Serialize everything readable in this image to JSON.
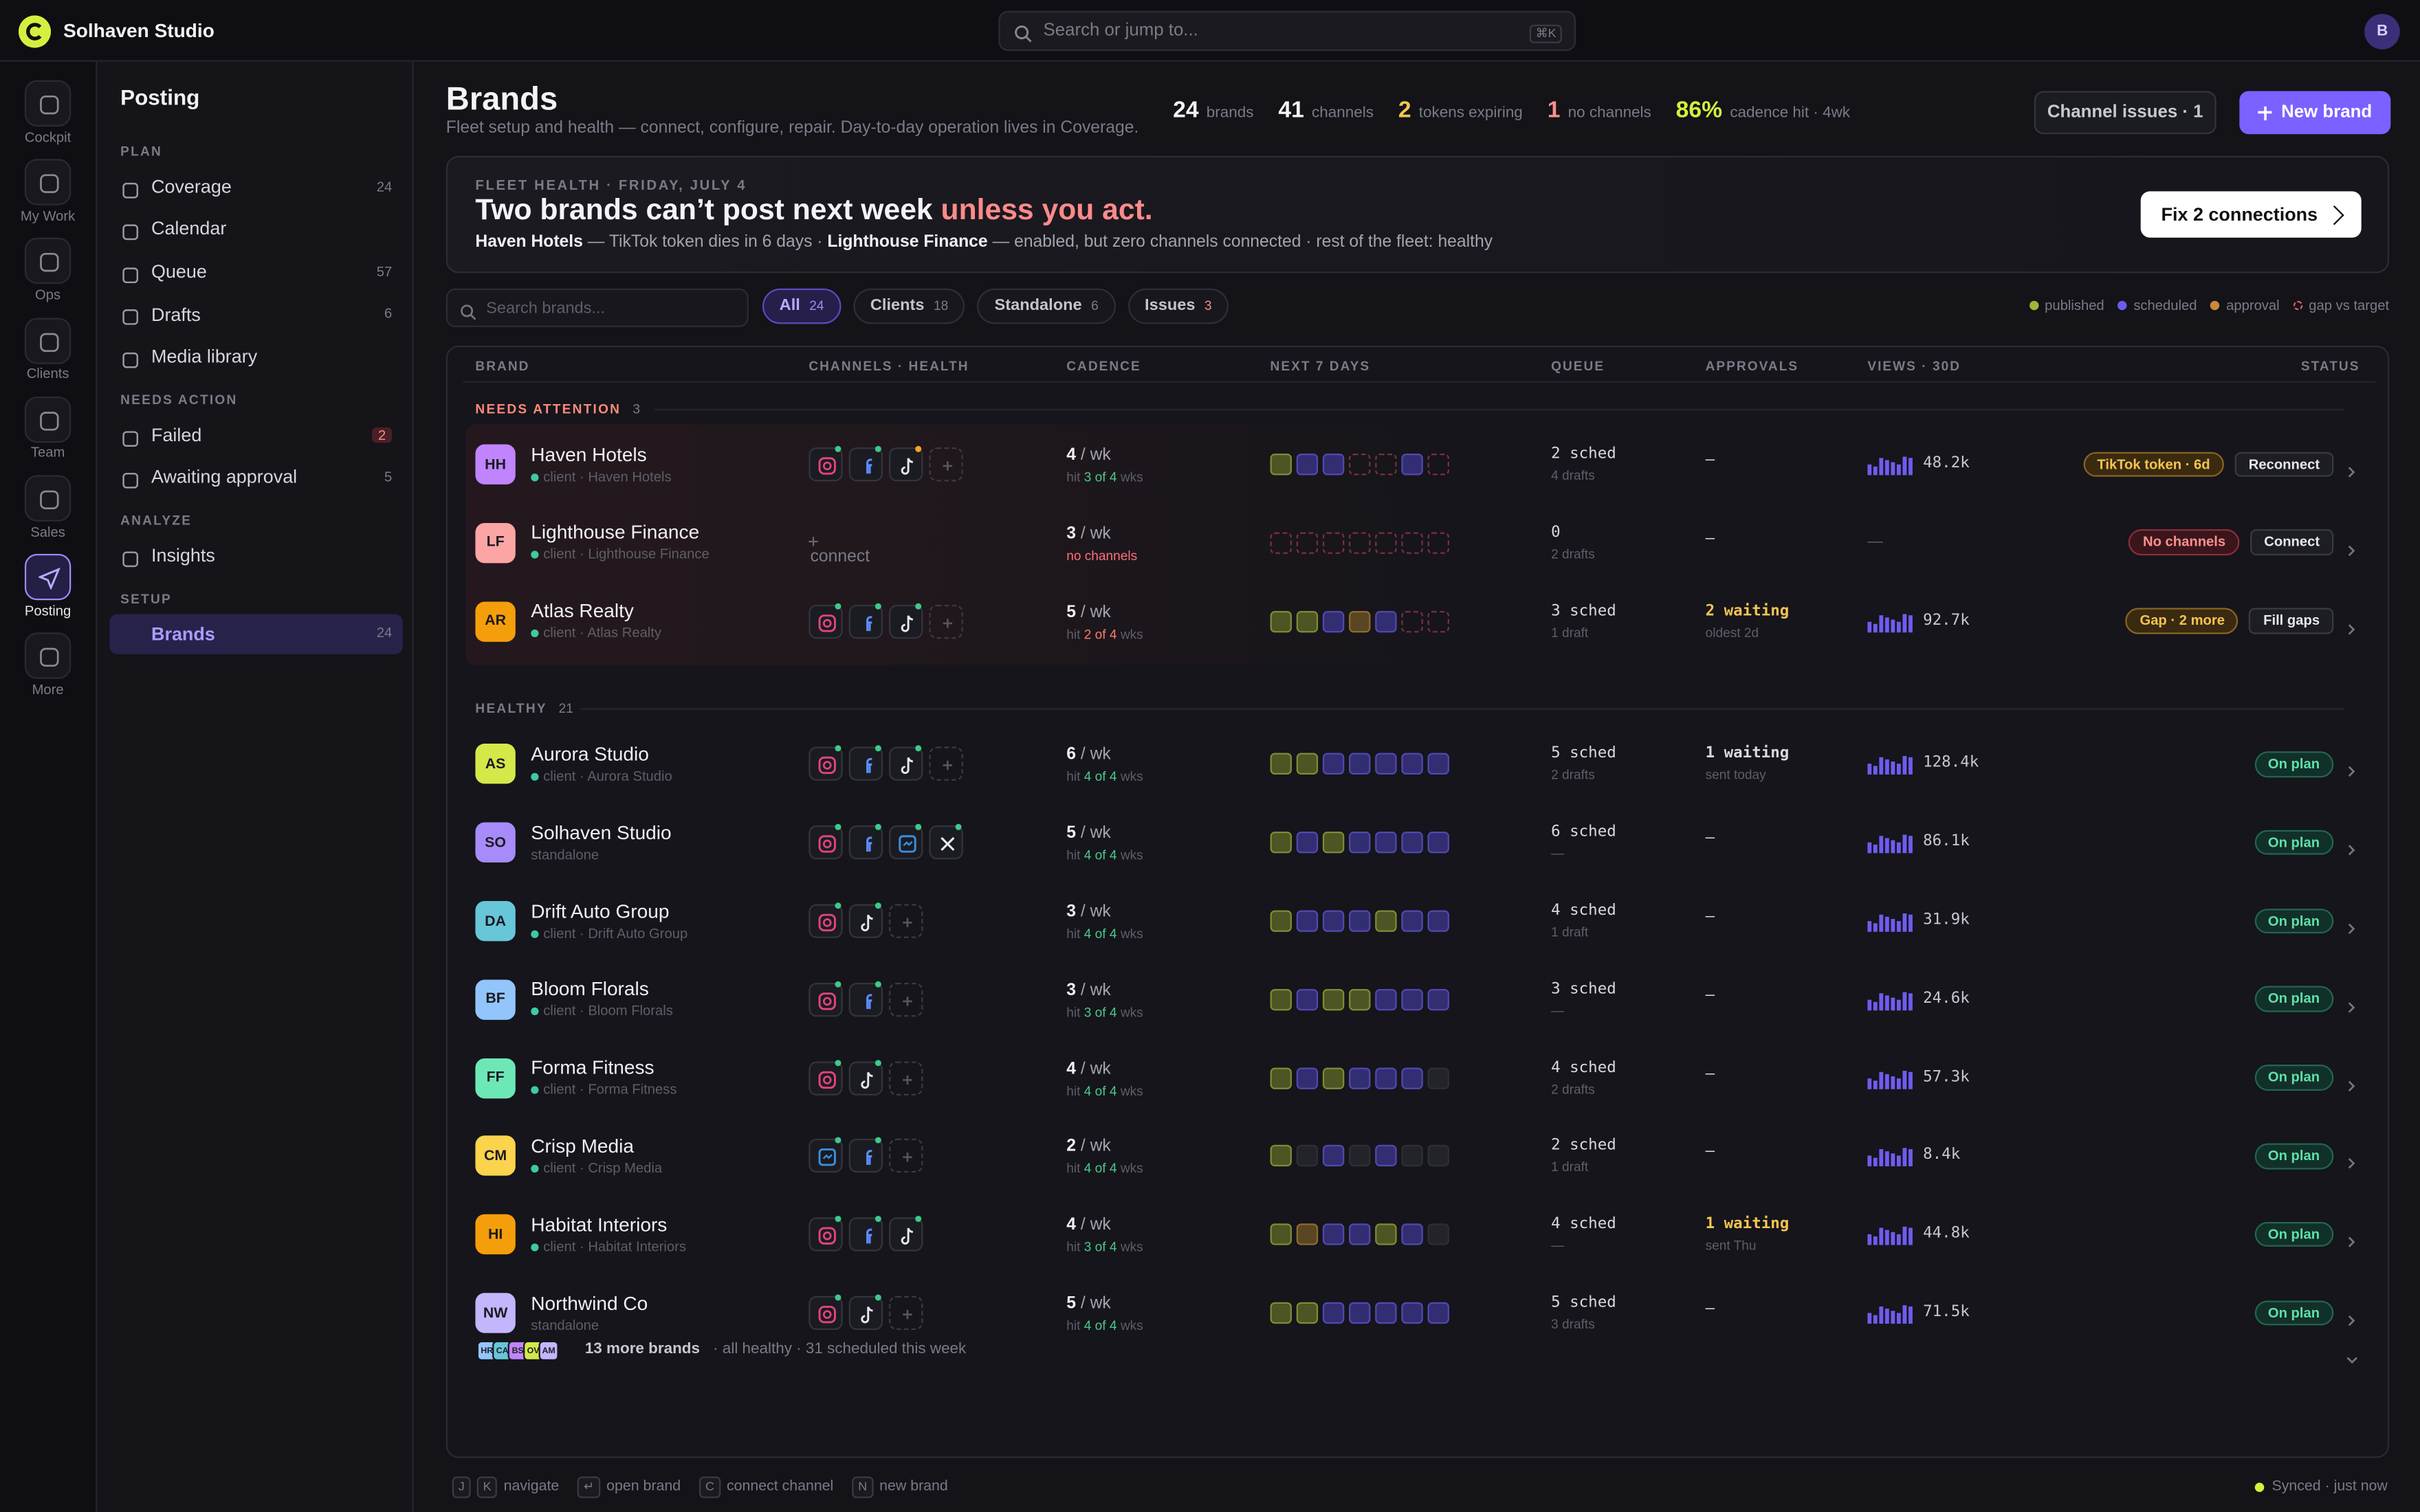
{
  "app": {
    "name": "Solhaven Studio",
    "search": "Search or jump to...",
    "shortcut": "⌘K",
    "avatar": "B"
  },
  "rail": [
    {
      "label": "Cockpit"
    },
    {
      "label": "My Work"
    },
    {
      "label": "Ops"
    },
    {
      "label": "Clients"
    },
    {
      "label": "Team"
    },
    {
      "label": "Sales"
    },
    {
      "label": "Posting",
      "active": true
    },
    {
      "label": "More"
    }
  ],
  "sidebar": {
    "title": "Posting",
    "sections": [
      {
        "heading": "PLAN",
        "items": [
          {
            "label": "Coverage",
            "count": 24
          },
          {
            "label": "Calendar"
          },
          {
            "label": "Queue",
            "count": 57
          },
          {
            "label": "Drafts",
            "count": 6
          },
          {
            "label": "Media library"
          }
        ]
      },
      {
        "heading": "NEEDS ACTION",
        "items": [
          {
            "label": "Failed",
            "count": 2,
            "alert": true
          },
          {
            "label": "Awaiting approval",
            "count": 5
          }
        ]
      },
      {
        "heading": "ANALYZE",
        "items": [
          {
            "label": "Insights"
          }
        ]
      },
      {
        "heading": "SETUP",
        "items": [
          {
            "label": "Brands",
            "count": 24,
            "active": true
          }
        ]
      }
    ]
  },
  "header": {
    "title": "Brands",
    "subtitle": "Fleet setup and health — connect, configure, repair. Day-to-day operation lives in Coverage.",
    "stats": [
      {
        "value": "24",
        "label": "brands",
        "tone": "plain"
      },
      {
        "value": "41",
        "label": "channels",
        "tone": "plain"
      },
      {
        "value": "2",
        "label": "tokens expiring",
        "tone": "warn"
      },
      {
        "value": "1",
        "label": "no channels",
        "tone": "bad"
      },
      {
        "value": "86%",
        "label": "cadence hit · 4wk",
        "tone": "good"
      }
    ],
    "secondary_button": "Channel issues · 1",
    "primary_button": "New brand"
  },
  "banner": {
    "kicker": "FLEET HEALTH · FRIDAY, JULY 4",
    "headline": "Two brands can’t post next week",
    "emphasis": "unless you act.",
    "detail": [
      {
        "strong": "Haven Hotels",
        "text": " — TikTok token dies in 6 days · "
      },
      {
        "strong": "Lighthouse Finance",
        "text": " — enabled, but zero channels connected · rest of the fleet: healthy"
      }
    ],
    "button": "Fix 2 connections"
  },
  "filters": {
    "search": "Search brands...",
    "chips": [
      {
        "label": "All",
        "count": 24,
        "active": true
      },
      {
        "label": "Clients",
        "count": 18
      },
      {
        "label": "Standalone",
        "count": 6
      },
      {
        "label": "Issues",
        "count": 3,
        "alert": true
      }
    ],
    "legend": [
      {
        "label": "published",
        "state": "p"
      },
      {
        "label": "scheduled",
        "state": "s"
      },
      {
        "label": "approval",
        "state": "a"
      },
      {
        "label": "gap vs target",
        "state": "g"
      }
    ]
  },
  "table": {
    "columns": [
      "BRAND",
      "CHANNELS · HEALTH",
      "CADENCE",
      "NEXT 7 DAYS",
      "QUEUE",
      "APPROVALS",
      "VIEWS · 30D",
      "STATUS"
    ],
    "hit_prefix": "hit",
    "hit_suffix": "wks",
    "per_week": "/ wk",
    "groups": [
      {
        "label": "NEEDS ATTENTION",
        "count": 3,
        "attention": true,
        "rows": [
          {
            "initials": "HH",
            "name": "Haven Hotels",
            "sub": "client · Haven Hotels",
            "client": true,
            "color": "#c084fc",
            "channels": [
              "ig",
              "fb",
              "tt!",
              "add"
            ],
            "cadence": "4",
            "hit": "3 of 4",
            "hit_tone": "ok",
            "days": [
              "p",
              "s",
              "s",
              "g",
              "g",
              "s",
              "g"
            ],
            "queue": "2 sched",
            "queue_sub": "4 drafts",
            "approvals": "—",
            "views": "48.2k",
            "status": "TikTok token · 6d",
            "tone": "warn",
            "action": "Reconnect"
          },
          {
            "initials": "LF",
            "name": "Lighthouse Finance",
            "sub": "client · Lighthouse Finance",
            "client": true,
            "color": "#fca5a5",
            "channels": [],
            "channel_note": "connect",
            "cadence": "3",
            "cadence_note": "no channels",
            "days": [
              "g",
              "g",
              "g",
              "g",
              "g",
              "g",
              "g"
            ],
            "queue": "0",
            "queue_sub": "2 drafts",
            "approvals": "—",
            "views": "—",
            "status": "No channels",
            "tone": "bad",
            "action": "Connect"
          },
          {
            "initials": "AR",
            "name": "Atlas Realty",
            "sub": "client · Atlas Realty",
            "client": true,
            "color": "#f59e0b",
            "channels": [
              "ig",
              "fb",
              "tt",
              "add"
            ],
            "cadence": "5",
            "hit": "2 of 4",
            "hit_tone": "bad",
            "days": [
              "p",
              "p",
              "s",
              "a",
              "s",
              "g",
              "g"
            ],
            "queue": "3 sched",
            "queue_sub": "1 draft",
            "approvals": "2 waiting",
            "approvals_sub": "oldest 2d",
            "views": "92.7k",
            "status": "Gap · 2 more",
            "tone": "warn",
            "action": "Fill gaps"
          }
        ]
      },
      {
        "label": "HEALTHY",
        "count": 21,
        "rows": [
          {
            "initials": "AS",
            "name": "Aurora Studio",
            "sub": "client · Aurora Studio",
            "client": true,
            "color": "#d4e84a",
            "channels": [
              "ig",
              "fb",
              "tt",
              "add"
            ],
            "cadence": "6",
            "hit": "4 of 4",
            "hit_tone": "ok",
            "days": [
              "p",
              "p",
              "s",
              "s",
              "s",
              "s",
              "s"
            ],
            "queue": "5 sched",
            "queue_sub": "2 drafts",
            "approvals": "1 waiting",
            "approvals_sub": "sent today",
            "views": "128.4k",
            "status": "On plan",
            "tone": "good"
          },
          {
            "initials": "SO",
            "name": "Solhaven Studio",
            "sub": "standalone",
            "color": "#a78bfa",
            "channels": [
              "ig",
              "fb",
              "li",
              "x"
            ],
            "cadence": "5",
            "hit": "4 of 4",
            "hit_tone": "ok",
            "days": [
              "p",
              "s",
              "p",
              "s",
              "s",
              "s",
              "s"
            ],
            "queue": "6 sched",
            "queue_sub": "—",
            "approvals": "—",
            "views": "86.1k",
            "status": "On plan",
            "tone": "good"
          },
          {
            "initials": "DA",
            "name": "Drift Auto Group",
            "sub": "client · Drift Auto Group",
            "client": true,
            "color": "#67c6d8",
            "channels": [
              "ig",
              "tt",
              "add"
            ],
            "cadence": "3",
            "hit": "4 of 4",
            "hit_tone": "ok",
            "days": [
              "p",
              "s",
              "s",
              "s",
              "p",
              "s",
              "s"
            ],
            "queue": "4 sched",
            "queue_sub": "1 draft",
            "approvals": "—",
            "views": "31.9k",
            "status": "On plan",
            "tone": "good"
          },
          {
            "initials": "BF",
            "name": "Bloom Florals",
            "sub": "client · Bloom Florals",
            "client": true,
            "color": "#93c5fd",
            "channels": [
              "ig",
              "fb",
              "add"
            ],
            "cadence": "3",
            "hit": "3 of 4",
            "hit_tone": "ok",
            "days": [
              "p",
              "s",
              "p",
              "p",
              "s",
              "s",
              "s"
            ],
            "queue": "3 sched",
            "queue_sub": "—",
            "approvals": "—",
            "views": "24.6k",
            "status": "On plan",
            "tone": "good"
          },
          {
            "initials": "FF",
            "name": "Forma Fitness",
            "sub": "client · Forma Fitness",
            "client": true,
            "color": "#6ee7b7",
            "channels": [
              "ig",
              "tt",
              "add"
            ],
            "cadence": "4",
            "hit": "4 of 4",
            "hit_tone": "ok",
            "days": [
              "p",
              "s",
              "p",
              "s",
              "s",
              "s",
              "e"
            ],
            "queue": "4 sched",
            "queue_sub": "2 drafts",
            "approvals": "—",
            "views": "57.3k",
            "status": "On plan",
            "tone": "good"
          },
          {
            "initials": "CM",
            "name": "Crisp Media",
            "sub": "client · Crisp Media",
            "client": true,
            "color": "#fcd34d",
            "channels": [
              "li",
              "fb",
              "add"
            ],
            "cadence": "2",
            "hit": "4 of 4",
            "hit_tone": "ok",
            "days": [
              "p",
              "e",
              "s",
              "e",
              "s",
              "e",
              "e"
            ],
            "queue": "2 sched",
            "queue_sub": "1 draft",
            "approvals": "—",
            "views": "8.4k",
            "status": "On plan",
            "tone": "good"
          },
          {
            "initials": "HI",
            "name": "Habitat Interiors",
            "sub": "client · Habitat Interiors",
            "client": true,
            "color": "#f59e0b",
            "channels": [
              "ig",
              "fb",
              "tt"
            ],
            "cadence": "4",
            "hit": "3 of 4",
            "hit_tone": "ok",
            "days": [
              "p",
              "a",
              "s",
              "s",
              "p",
              "s",
              "e"
            ],
            "queue": "4 sched",
            "queue_sub": "—",
            "approvals": "1 waiting",
            "approvals_sub": "sent Thu",
            "views": "44.8k",
            "status": "On plan",
            "tone": "good"
          },
          {
            "initials": "NW",
            "name": "Northwind Co",
            "sub": "standalone",
            "color": "#c4b5fd",
            "channels": [
              "ig",
              "tt",
              "add"
            ],
            "cadence": "5",
            "hit": "4 of 4",
            "hit_tone": "ok",
            "days": [
              "p",
              "p",
              "s",
              "s",
              "s",
              "s",
              "s"
            ],
            "queue": "5 sched",
            "queue_sub": "3 drafts",
            "approvals": "—",
            "views": "71.5k",
            "status": "On plan",
            "tone": "good"
          }
        ]
      }
    ],
    "footer": {
      "avatars": [
        "HR",
        "CA",
        "BS",
        "OV",
        "AM"
      ],
      "more": "13 more brands",
      "detail": "· all healthy · 31 scheduled this week"
    }
  },
  "hints": [
    {
      "keys": [
        "J",
        "K"
      ],
      "label": "navigate"
    },
    {
      "keys": [
        "↵"
      ],
      "label": "open brand"
    },
    {
      "keys": [
        "C"
      ],
      "label": "connect channel"
    },
    {
      "keys": [
        "N"
      ],
      "label": "new brand"
    }
  ],
  "sync": "Synced · just now"
}
